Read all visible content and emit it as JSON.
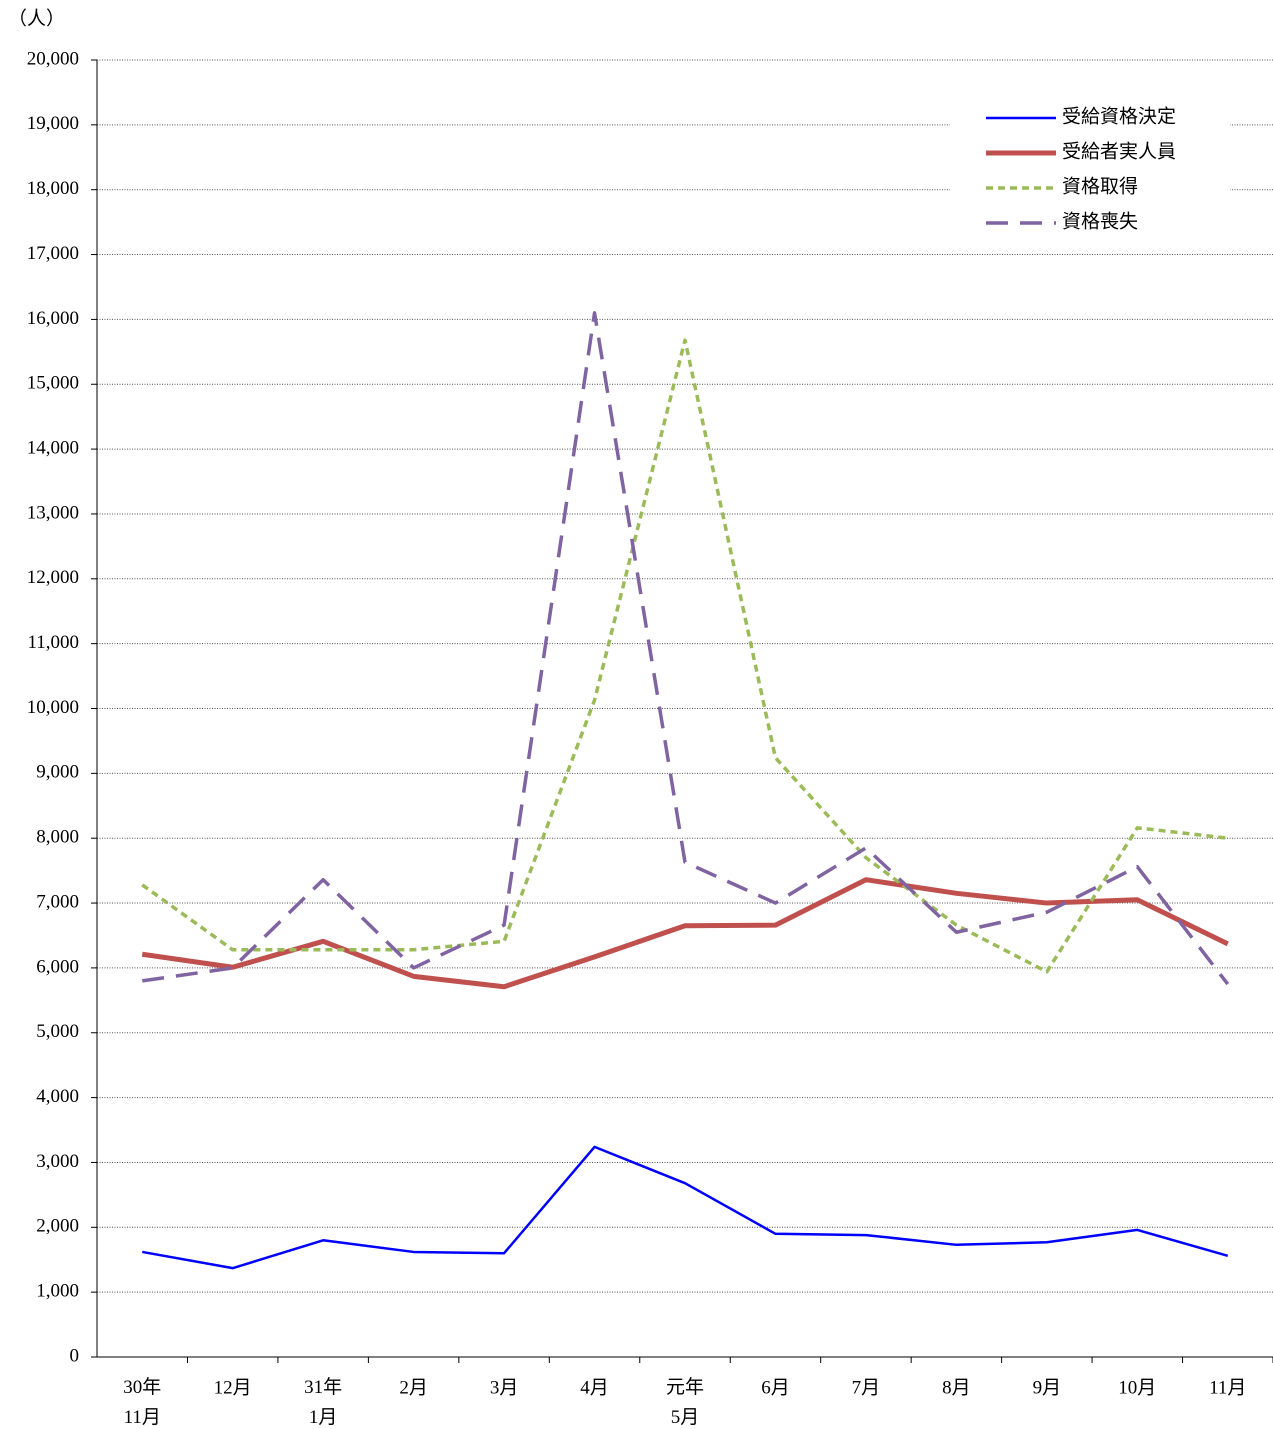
{
  "chart_data": {
    "type": "line",
    "y_label": "（人）",
    "categories": [
      "30年\n11月",
      "12月",
      "31年\n1月",
      "2月",
      "3月",
      "4月",
      "元年\n5月",
      "6月",
      "7月",
      "8月",
      "9月",
      "10月",
      "11月"
    ],
    "series": [
      {
        "name": "受給資格決定",
        "color": "#0000ff",
        "values": [
          1620,
          1370,
          1800,
          1620,
          1600,
          3240,
          2680,
          1900,
          1880,
          1730,
          1770,
          1960,
          1560
        ]
      },
      {
        "name": "受給者実人員",
        "color": "#c0504d",
        "values": [
          6210,
          6010,
          6410,
          5870,
          5710,
          6170,
          6650,
          6660,
          7360,
          7150,
          7000,
          7050,
          6370
        ]
      },
      {
        "name": "資格取得",
        "color": "#9bbb59",
        "values": [
          7280,
          6280,
          6280,
          6280,
          6410,
          10130,
          15680,
          9240,
          7700,
          6660,
          5940,
          8160,
          8000
        ]
      },
      {
        "name": "資格喪失",
        "color": "#8064a2",
        "values": [
          5800,
          6000,
          7360,
          6000,
          6660,
          16100,
          7630,
          7000,
          7850,
          6550,
          6860,
          7560,
          5750
        ]
      }
    ],
    "ylim": [
      0,
      20000
    ],
    "yticks": [
      0,
      {
        "value": 1000,
        "label": "1,000"
      },
      {
        "value": 2000,
        "label": "2,000"
      },
      {
        "value": 3000,
        "label": "3,000"
      },
      {
        "value": 4000,
        "label": "4,000"
      },
      {
        "value": 5000,
        "label": "5,000"
      },
      {
        "value": 6000,
        "label": "6,000"
      },
      {
        "value": 7000,
        "label": "7,000"
      },
      {
        "value": 8000,
        "label": "8,000"
      },
      {
        "value": 9000,
        "label": "9,000"
      },
      {
        "value": 10000,
        "label": "10,000"
      },
      {
        "value": 11000,
        "label": "11,000"
      },
      {
        "value": 12000,
        "label": "12,000"
      },
      {
        "value": 13000,
        "label": "13,000"
      },
      {
        "value": 14000,
        "label": "14,000"
      },
      {
        "value": 15000,
        "label": "15,000"
      },
      {
        "value": 16000,
        "label": "16,000"
      },
      {
        "value": 17000,
        "label": "17,000"
      },
      {
        "value": 18000,
        "label": "18,000"
      },
      {
        "value": 19000,
        "label": "19,000"
      },
      {
        "value": 20000,
        "label": "20,000"
      }
    ],
    "grid": true,
    "legend": "upper right"
  }
}
